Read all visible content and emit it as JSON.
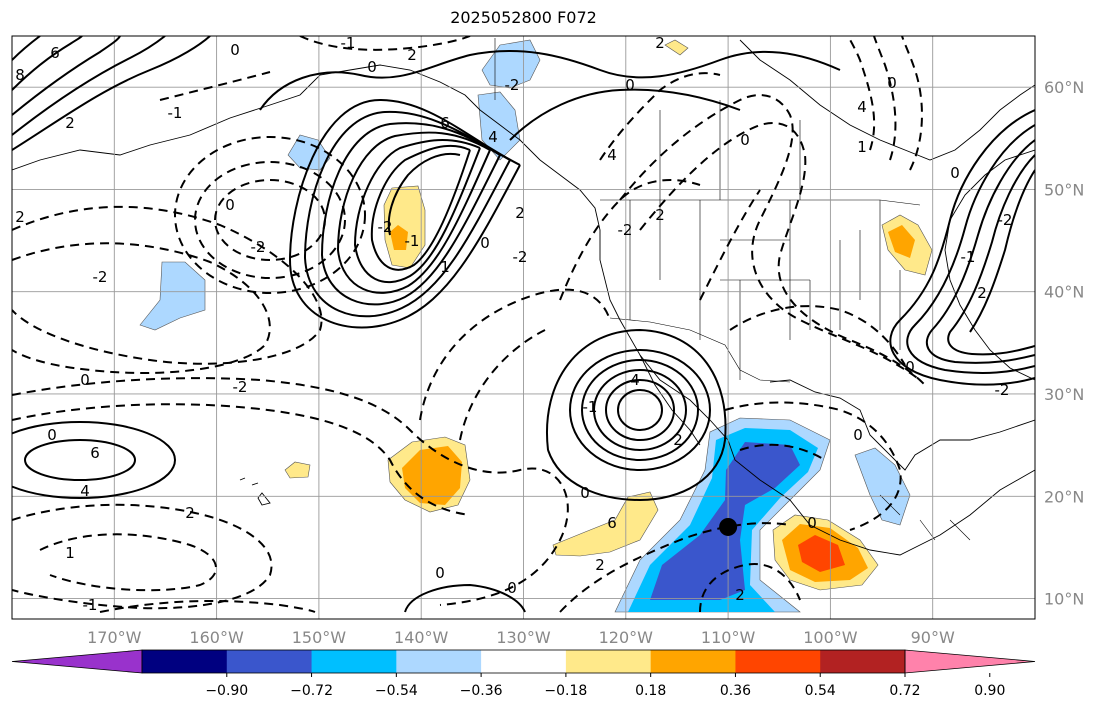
{
  "title": "2025052800 F072",
  "map": {
    "projection": "cylindrical",
    "extent_deg": {
      "lon": [
        -180,
        -80
      ],
      "lat": [
        8,
        65
      ]
    },
    "grid": true,
    "land_outlines": "coastlines, country and US state borders",
    "lat_labels": [
      "60°N",
      "50°N",
      "40°N",
      "30°N",
      "20°N",
      "10°N"
    ],
    "lon_labels": [
      "170°W",
      "160°W",
      "150°W",
      "140°W",
      "130°W",
      "120°W",
      "110°W",
      "100°W",
      "90°W"
    ],
    "contour_labels": [
      "8",
      "6",
      "2",
      "-1",
      "0",
      "-1",
      "2",
      "0",
      "6",
      "4",
      "-2",
      "4",
      "0",
      "2",
      "1",
      "-2",
      "-1",
      "0",
      "2",
      "-2",
      "4",
      "2",
      "-1",
      "0",
      "0",
      "-2",
      "0",
      "-2",
      "2",
      "0",
      "6",
      "4",
      "2",
      "1",
      "-2",
      "0",
      "6",
      "2",
      "0",
      "-2",
      "4",
      "0",
      "1",
      "0",
      "-1",
      "2",
      "0",
      "-2",
      "-2",
      "2",
      "0",
      "0",
      "2",
      "-1",
      "0"
    ],
    "marker": {
      "type": "filled-circle",
      "color": "#000000",
      "lon": -110,
      "lat": 17
    }
  },
  "colorbar": {
    "orientation": "horizontal",
    "extend": "both",
    "tick_labels": [
      "−0.90",
      "−0.72",
      "−0.54",
      "−0.36",
      "−0.18",
      "0.18",
      "0.36",
      "0.54",
      "0.72",
      "0.90"
    ],
    "bins": [
      {
        "color": "#9932cc"
      },
      {
        "color": "#000080"
      },
      {
        "color": "#3a56cc"
      },
      {
        "color": "#00bfff"
      },
      {
        "color": "#add8ff"
      },
      {
        "color": "#ffffff"
      },
      {
        "color": "#ffe98a"
      },
      {
        "color": "#ffa500"
      },
      {
        "color": "#ff4500"
      },
      {
        "color": "#b22222"
      },
      {
        "color": "#ff82ab"
      }
    ]
  }
}
